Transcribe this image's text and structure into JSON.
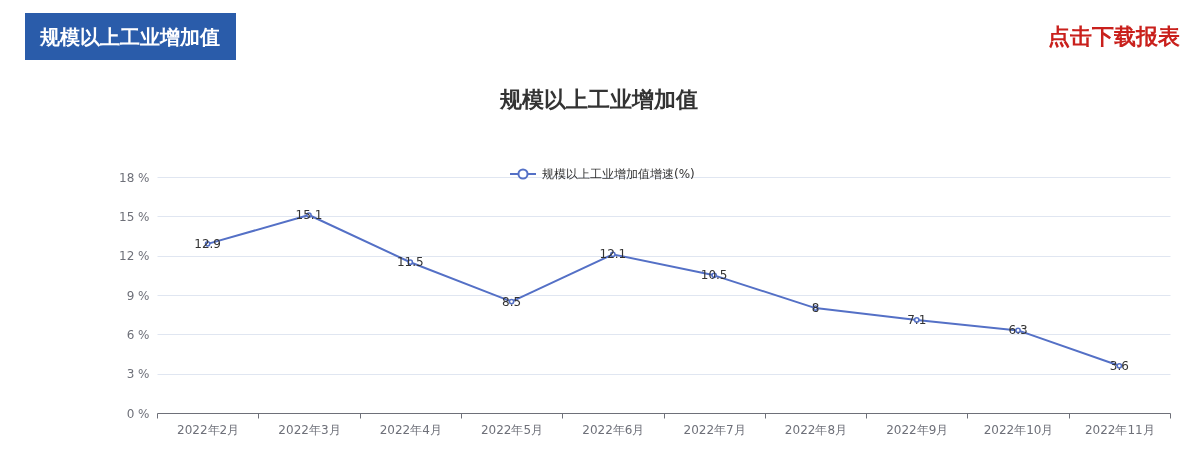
{
  "chart_data": {
    "type": "line",
    "title": "规模以上工业增加值",
    "annotations": [
      "规模以上工业增加值",
      "点击下载报表"
    ],
    "categories": [
      "2022年2月",
      "2022年3月",
      "2022年4月",
      "2022年5月",
      "2022年6月",
      "2022年7月",
      "2022年8月",
      "2022年9月",
      "2022年10月",
      "2022年11月"
    ],
    "series": [
      {
        "name": "规模以上工业增加值增速(%)",
        "color": "#5470c6",
        "values": [
          12.9,
          15.1,
          11.5,
          8.5,
          12.1,
          10.5,
          8,
          7.1,
          6.3,
          3.6
        ]
      }
    ],
    "ylim": [
      0,
      18
    ],
    "yticks": [
      {
        "value": 0,
        "label": "0 %"
      },
      {
        "value": 3,
        "label": "3 %"
      },
      {
        "value": 6,
        "label": "6 %"
      },
      {
        "value": 9,
        "label": "9 %"
      },
      {
        "value": 12,
        "label": "12 %"
      },
      {
        "value": 15,
        "label": "15 %"
      },
      {
        "value": 18,
        "label": "18 %"
      }
    ],
    "grid": "y",
    "legend": "top",
    "marker": "circle",
    "line_style": "solid",
    "data_labels": true
  }
}
